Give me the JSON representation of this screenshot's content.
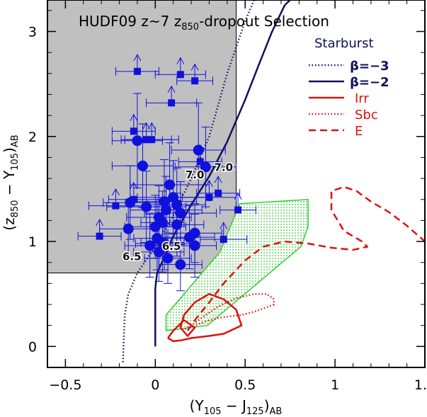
{
  "chart_data": {
    "type": "scatter",
    "title": "HUDF09 z~7 z850-dropout Selection",
    "title_parts": {
      "lead": "HUDF09 z~7 z",
      "sub": "850",
      "tail": "-dropout Selection"
    },
    "xlabel": "(Y105 - J125)AB",
    "xlabel_parts": {
      "a": "(Y",
      "a_sub": "105",
      "mid": " − J",
      "b_sub": "125",
      "close": ")",
      "end_sub": "AB"
    },
    "ylabel": "(z850 - Y105)AB",
    "ylabel_parts": {
      "a": "(z",
      "a_sub": "850",
      "mid": " − Y",
      "b_sub": "105",
      "close": ")",
      "end_sub": "AB"
    },
    "xlim": [
      -0.6,
      1.5
    ],
    "ylim": [
      -0.2,
      3.3
    ],
    "x_ticks": [
      -0.5,
      0,
      0.5,
      1,
      1.5
    ],
    "x_tick_labels": [
      "−0.5",
      "0",
      "0.5",
      "1",
      "1.5"
    ],
    "y_ticks": [
      0,
      1,
      2,
      3
    ],
    "y_tick_labels": [
      "0",
      "1",
      "2",
      "3"
    ],
    "selection_region": {
      "x_max": 0.45,
      "y_min": 0.7,
      "y_max": 3.3,
      "color": "#c0c0c0"
    },
    "legend": {
      "heading": "Starburst",
      "entries": [
        {
          "label": "β=−3",
          "color": "#10125a",
          "style": "dotted"
        },
        {
          "label": "β=−2",
          "color": "#10125a",
          "style": "solid"
        },
        {
          "label": "Irr",
          "color": "#dd1111",
          "style": "solid"
        },
        {
          "label": "Sbc",
          "color": "#dd1111",
          "style": "dotted"
        },
        {
          "label": "E",
          "color": "#dd1111",
          "style": "dashed"
        }
      ]
    },
    "tracks": [
      {
        "name": "Starburst beta=-3",
        "color": "#10125a",
        "style": "dotted",
        "x": [
          -0.18,
          -0.17,
          -0.15,
          -0.1,
          0.0,
          0.1,
          0.2,
          0.3,
          0.4,
          0.5,
          0.55
        ],
        "y": [
          -0.15,
          0.3,
          0.5,
          0.7,
          0.95,
          1.25,
          1.6,
          2.0,
          2.6,
          3.1,
          3.3
        ]
      },
      {
        "name": "Starburst beta=-2",
        "color": "#10125a",
        "style": "solid",
        "x": [
          0.0,
          0.0,
          0.01,
          0.05,
          0.1,
          0.2,
          0.3,
          0.4,
          0.5,
          0.58,
          0.65,
          0.72,
          0.78,
          0.8
        ],
        "y": [
          0.0,
          0.55,
          0.7,
          0.85,
          1.05,
          1.35,
          1.62,
          1.95,
          2.35,
          2.7,
          3.0,
          3.25,
          3.35,
          3.4
        ]
      },
      {
        "name": "Irr",
        "color": "#dd1111",
        "style": "solid",
        "x": [
          0.07,
          0.1,
          0.15,
          0.2,
          0.3,
          0.38,
          0.48,
          0.45,
          0.38,
          0.3,
          0.22,
          0.16,
          0.14,
          0.18,
          0.22,
          0.16,
          0.1,
          0.07
        ],
        "y": [
          0.08,
          0.05,
          0.06,
          0.08,
          0.1,
          0.12,
          0.2,
          0.35,
          0.45,
          0.5,
          0.42,
          0.3,
          0.18,
          0.1,
          0.18,
          0.25,
          0.15,
          0.08
        ]
      },
      {
        "name": "Sbc",
        "color": "#dd1111",
        "style": "dotted",
        "x": [
          0.15,
          0.2,
          0.28,
          0.35,
          0.45,
          0.55,
          0.62,
          0.66,
          0.66,
          0.6,
          0.55,
          0.48,
          0.38,
          0.3,
          0.22
        ],
        "y": [
          0.15,
          0.2,
          0.3,
          0.38,
          0.46,
          0.5,
          0.5,
          0.45,
          0.4,
          0.36,
          0.33,
          0.3,
          0.28,
          0.25,
          0.2
        ]
      },
      {
        "name": "E",
        "color": "#dd1111",
        "style": "dashed",
        "x": [
          0.18,
          0.22,
          0.3,
          0.38,
          0.5,
          0.6,
          0.72,
          0.85,
          0.98,
          1.1,
          1.18,
          1.15,
          1.05,
          0.98,
          0.98,
          1.05,
          1.12,
          1.2,
          1.3,
          1.4,
          1.5
        ],
        "y": [
          0.15,
          0.25,
          0.42,
          0.6,
          0.82,
          0.95,
          1.0,
          0.98,
          0.94,
          0.92,
          0.95,
          1.0,
          1.1,
          1.3,
          1.48,
          1.52,
          1.48,
          1.38,
          1.28,
          1.15,
          1.0
        ]
      }
    ],
    "track_labels": [
      {
        "text": "7.0",
        "x": 0.22,
        "y": 1.6
      },
      {
        "text": "7.0",
        "x": 0.38,
        "y": 1.67
      },
      {
        "text": "6.5",
        "x": -0.13,
        "y": 0.82
      },
      {
        "text": "6.5",
        "x": 0.09,
        "y": 0.92
      }
    ],
    "uncertainty_region": {
      "color": "#33cc33",
      "x": [
        0.06,
        0.36,
        0.47,
        0.85,
        0.85,
        0.81,
        0.29,
        0.06
      ],
      "y": [
        0.3,
        0.9,
        1.36,
        1.4,
        1.14,
        0.95,
        0.2,
        0.15
      ]
    },
    "series": [
      {
        "name": "detections",
        "marker": "circle",
        "color": "#1010dd",
        "x": [
          -0.14,
          -0.1,
          -0.07,
          0.08,
          0.1,
          0.05,
          0.12,
          0.06,
          -0.05,
          0.14,
          0.02,
          0.28,
          -0.15,
          0.24,
          0.04,
          0.12,
          0.0,
          0.22,
          0.19,
          0.01,
          0.04,
          0.05,
          0.22,
          0.02,
          0.07,
          -0.03,
          0.14
        ],
        "y": [
          1.37,
          1.96,
          1.72,
          1.54,
          1.42,
          1.38,
          1.35,
          1.3,
          1.33,
          1.27,
          1.23,
          1.71,
          1.12,
          1.87,
          1.18,
          1.16,
          1.14,
          1.08,
          1.04,
          1.03,
          0.99,
          0.98,
          0.96,
          0.9,
          0.84,
          0.96,
          0.78
        ],
        "xerr": [
          0.15,
          0.14,
          0.17,
          0.22,
          0.2,
          0.18,
          0.16,
          0.2,
          0.22,
          0.2,
          0.18,
          0.17,
          0.16,
          0.15,
          0.12,
          0.15,
          0.17,
          0.15,
          0.14,
          0.13,
          0.12,
          0.16,
          0.12,
          0.14,
          0.13,
          0.14,
          0.12
        ],
        "yerr": [
          0.35,
          0.45,
          0.4,
          0.4,
          0.35,
          0.4,
          0.35,
          0.32,
          0.34,
          0.3,
          0.3,
          0.38,
          0.28,
          0.45,
          0.3,
          0.3,
          0.3,
          0.28,
          0.3,
          0.3,
          0.28,
          0.25,
          0.3,
          0.28,
          0.24,
          0.3,
          0.25
        ]
      },
      {
        "name": "lower limits",
        "marker": "square",
        "color": "#1010dd",
        "x": [
          -0.1,
          0.14,
          -0.12,
          0.22,
          0.09,
          -0.02,
          0.25,
          -0.05,
          0.3,
          0.46,
          -0.31,
          0.35,
          0.38,
          -0.22,
          -0.12
        ],
        "y": [
          2.62,
          2.59,
          2.05,
          2.53,
          2.32,
          1.97,
          1.76,
          1.97,
          1.42,
          1.3,
          1.05,
          1.46,
          1.02,
          1.34,
          1.4
        ],
        "xerr": [
          0.12,
          0.14,
          0.12,
          0.1,
          0.14,
          0.15,
          0.12,
          0.14,
          0.15,
          0.1,
          0.12,
          0.12,
          0.13,
          0.15,
          0.14
        ],
        "arrow_length": [
          0.16,
          0.16,
          0.16,
          0.16,
          0.16,
          0.16,
          0.16,
          0.16,
          0.16,
          0.16,
          0.16,
          0.16,
          0.16,
          0.16,
          0.16
        ]
      }
    ]
  }
}
